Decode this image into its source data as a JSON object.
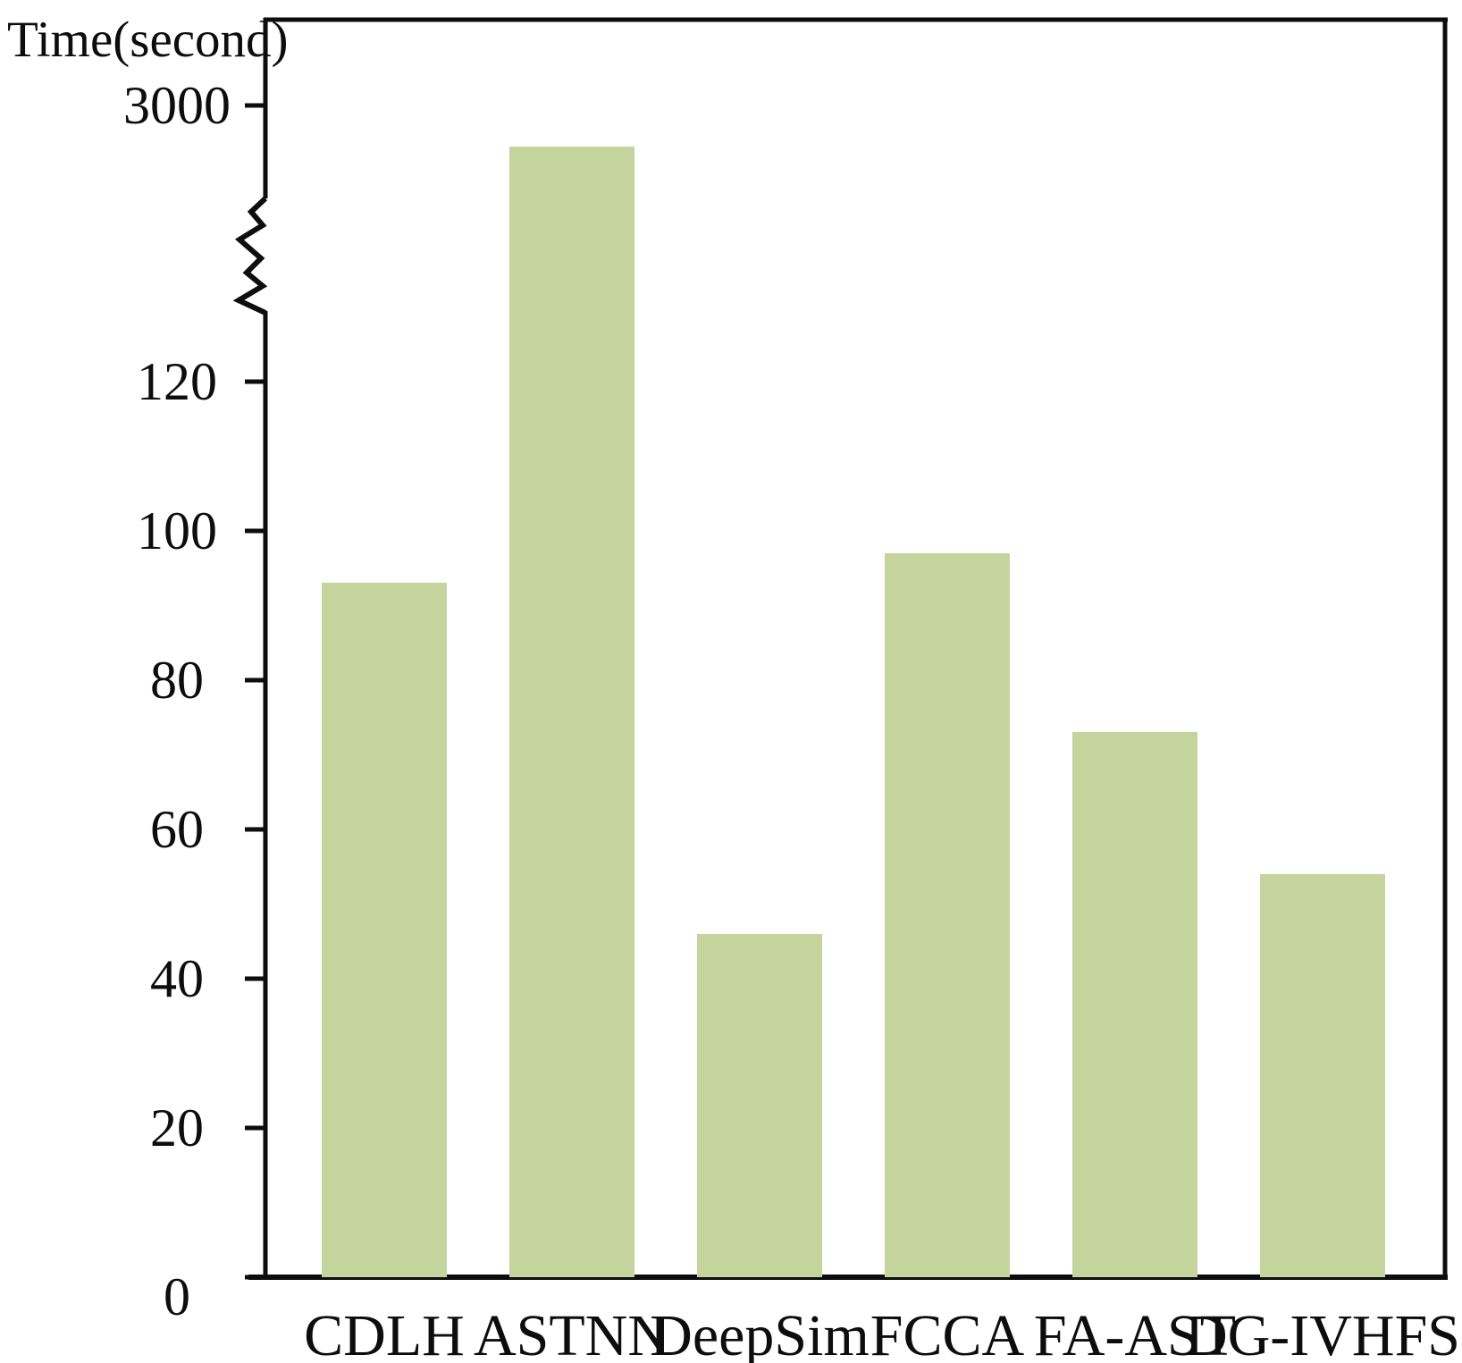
{
  "chart_data": {
    "type": "bar",
    "title": "",
    "ylabel": "Time(second)",
    "xlabel": "",
    "categories": [
      "CDLH",
      "ASTNN",
      "DeepSim",
      "FCCA",
      "FA-AST",
      "DG-IVHFS"
    ],
    "values": [
      93,
      2800,
      46,
      97,
      73,
      54
    ],
    "y_ticks_lower": [
      0,
      20,
      40,
      60,
      80,
      100,
      120
    ],
    "y_ticks_upper": [
      3000
    ],
    "axis_break": true,
    "ylim_lower": [
      0,
      130
    ],
    "grid": false,
    "legend": "none",
    "bar_color": "#c5d49d",
    "axis_color": "#0d0d0d"
  }
}
